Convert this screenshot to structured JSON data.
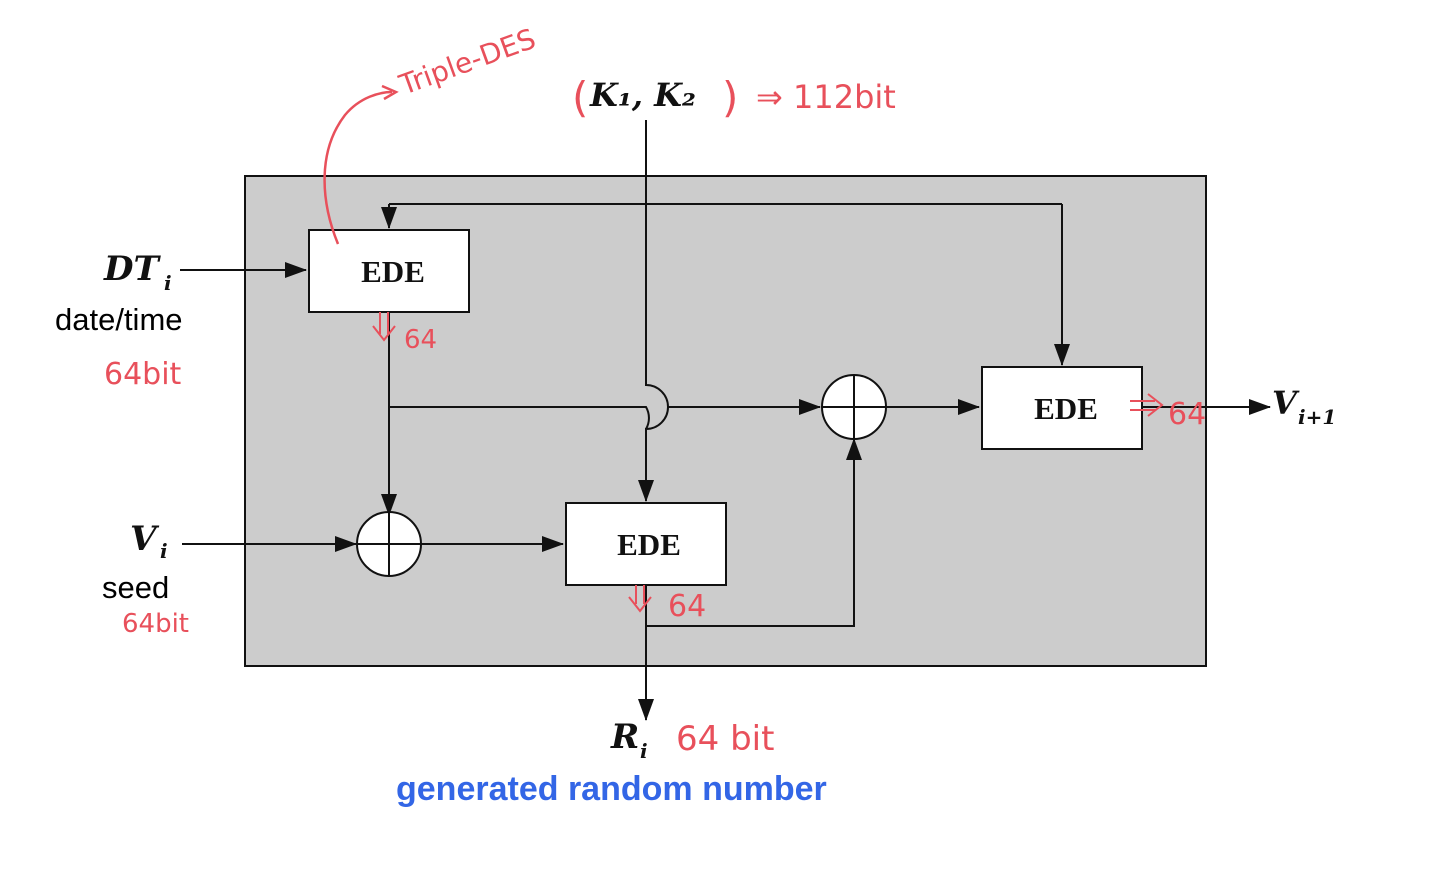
{
  "boxes": {
    "top_left": "EDE",
    "middle": "EDE",
    "right": "EDE"
  },
  "inputs": {
    "datetime": {
      "symbol": "DT",
      "subscript": "i",
      "caption": "date/time",
      "annotation": "64bit"
    },
    "seed": {
      "symbol": "V",
      "subscript": "i",
      "caption": "seed",
      "annotation": "64bit"
    },
    "keys": {
      "text": "K₁, K₂",
      "annotation": "⇒ 112bit"
    }
  },
  "outputs": {
    "next_seed": {
      "symbol": "V",
      "subscript": "i+1"
    },
    "random": {
      "symbol": "R",
      "subscript": "i",
      "annotation": "64 bit",
      "caption": "generated random number"
    }
  },
  "annotations": {
    "triple_des": "Triple-DES",
    "bits_top_left": "64",
    "bits_middle": "64",
    "bits_right": "64"
  },
  "colors": {
    "panel": "#cccccc",
    "ink": "#111111",
    "handwriting": "#e8505b",
    "caption": "#3366e6"
  }
}
